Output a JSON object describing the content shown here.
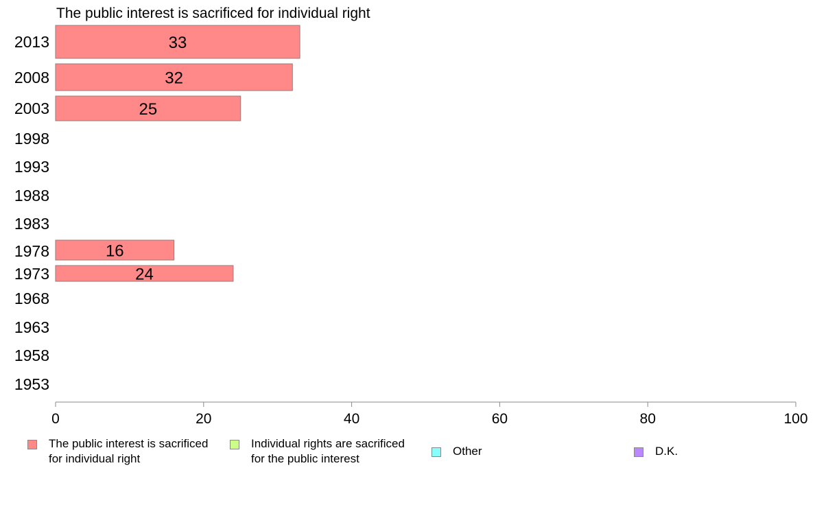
{
  "chart_data": {
    "type": "bar",
    "orientation": "horizontal",
    "title": "The public interest is sacrificed for individual right",
    "categories": [
      "2013",
      "2008",
      "2003",
      "1998",
      "1993",
      "1988",
      "1983",
      "1978",
      "1973",
      "1968",
      "1963",
      "1958",
      "1953"
    ],
    "series": [
      {
        "name": "The public interest is sacrificed for individual right",
        "color": "#ff8888",
        "values": [
          33,
          32,
          25,
          null,
          null,
          null,
          null,
          16,
          24,
          null,
          null,
          null,
          null
        ]
      }
    ],
    "xlim": [
      0,
      100
    ],
    "xticks": [
      "0",
      "20",
      "40",
      "60",
      "80",
      "100"
    ],
    "grid": false,
    "legend_position": "bottom"
  },
  "legend": {
    "items": [
      {
        "line1": "The public interest is sacrificed",
        "line2": "for individual right",
        "color": "#ff8888"
      },
      {
        "line1": "Individual rights are sacrificed",
        "line2": "for the public interest",
        "color": "#ccff88"
      },
      {
        "line1": "Other",
        "line2": "",
        "color": "#88ffff"
      },
      {
        "line1": "D.K.",
        "line2": "",
        "color": "#bb88ff"
      }
    ]
  }
}
